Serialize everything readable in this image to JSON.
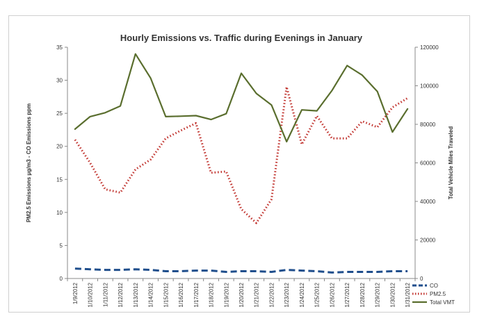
{
  "chart_data": {
    "type": "line",
    "title": "Hourly Emissions vs. Traffic during Evenings in January",
    "ylabel_left": "PM2.5 Emissions µg/m3 - CO Emissions ppm",
    "ylabel_right": "Total Vehicle Miles Traveled",
    "xlabel": "",
    "categories": [
      "1/9/2012",
      "1/10/2012",
      "1/11/2012",
      "1/12/2012",
      "1/13/2012",
      "1/14/2012",
      "1/15/2012",
      "1/16/2012",
      "1/17/2012",
      "1/18/2012",
      "1/19/2012",
      "1/20/2012",
      "1/21/2012",
      "1/22/2012",
      "1/23/2012",
      "1/24/2012",
      "1/25/2012",
      "1/26/2012",
      "1/27/2012",
      "1/28/2012",
      "1/29/2012",
      "1/30/2012",
      "1/31/2012"
    ],
    "ylim_left": [
      0,
      35
    ],
    "ylim_right": [
      0,
      120000
    ],
    "yticks_left": [
      "0",
      "5",
      "10",
      "15",
      "20",
      "25",
      "30",
      "35"
    ],
    "yticks_right": [
      "0",
      "20000",
      "40000",
      "60000",
      "80000",
      "100000",
      "120000"
    ],
    "grid": false,
    "legend_position": "bottom-right",
    "series": [
      {
        "name": "CO",
        "axis": "left",
        "style": "dashed",
        "color": "#1f4e8c",
        "values": [
          1.5,
          1.4,
          1.3,
          1.3,
          1.4,
          1.3,
          1.1,
          1.1,
          1.2,
          1.2,
          1.0,
          1.1,
          1.1,
          1.0,
          1.3,
          1.2,
          1.1,
          0.9,
          1.0,
          1.0,
          1.0,
          1.1,
          1.1
        ]
      },
      {
        "name": "PM2.5",
        "axis": "left",
        "style": "dotted",
        "color": "#c0302b",
        "values": [
          21.0,
          17.5,
          13.5,
          13.0,
          16.5,
          18.0,
          21.2,
          22.4,
          23.5,
          16.0,
          16.2,
          10.5,
          8.4,
          12.0,
          29.0,
          20.3,
          24.6,
          21.2,
          21.2,
          23.8,
          22.9,
          25.9,
          27.3
        ]
      },
      {
        "name": "Total VMT",
        "axis": "right",
        "style": "solid",
        "color": "#5a6e2e",
        "values": [
          77500,
          84000,
          86000,
          89500,
          116500,
          104000,
          84000,
          84200,
          84500,
          82500,
          85500,
          106500,
          96000,
          90000,
          71000,
          87500,
          87000,
          97500,
          110500,
          105500,
          97000,
          76000,
          88000
        ]
      }
    ]
  }
}
